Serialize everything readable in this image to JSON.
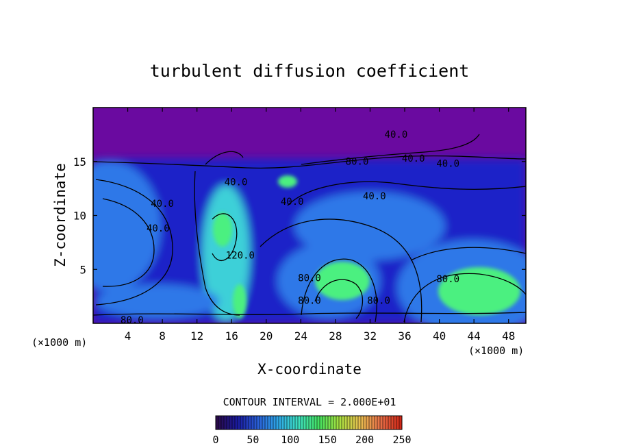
{
  "chart_data": {
    "type": "heatmap",
    "title": "turbulent diffusion coefficient",
    "xlabel": "X-coordinate",
    "ylabel": "Z-coordinate",
    "x_unit_left": "(×1000 m)",
    "x_unit_right": "(×1000 m)",
    "xlim": [
      0,
      50
    ],
    "ylim": [
      0,
      20
    ],
    "x_ticks": [
      4,
      8,
      12,
      16,
      20,
      24,
      28,
      32,
      36,
      40,
      44,
      48
    ],
    "y_ticks": [
      5,
      10,
      15
    ],
    "contour_interval_label": "CONTOUR INTERVAL = 2.000E+01",
    "contour_labels": [
      {
        "text": "40.0",
        "x": 35.0,
        "z": 17.2
      },
      {
        "text": "80.0",
        "x": 30.5,
        "z": 14.7
      },
      {
        "text": "40.0",
        "x": 37.0,
        "z": 15.0
      },
      {
        "text": "40.0",
        "x": 41.0,
        "z": 14.5
      },
      {
        "text": "40.0",
        "x": 16.5,
        "z": 12.8
      },
      {
        "text": "40.0",
        "x": 8.0,
        "z": 10.8
      },
      {
        "text": "40.0",
        "x": 7.5,
        "z": 8.5
      },
      {
        "text": "40.0",
        "x": 23.0,
        "z": 11.0
      },
      {
        "text": "40.0",
        "x": 32.5,
        "z": 11.5
      },
      {
        "text": "120.0",
        "x": 17.0,
        "z": 6.0
      },
      {
        "text": "80.0",
        "x": 25.0,
        "z": 3.9
      },
      {
        "text": "80.0",
        "x": 25.0,
        "z": 1.8
      },
      {
        "text": "80.0",
        "x": 33.0,
        "z": 1.8
      },
      {
        "text": "80.0",
        "x": 41.0,
        "z": 3.8
      },
      {
        "text": "80.0",
        "x": 4.5,
        "z": 0.0
      }
    ],
    "colorbar": {
      "min": 0,
      "max": 250,
      "ticks": [
        0,
        50,
        100,
        150,
        200,
        250
      ],
      "colors": [
        "#2a0a4a",
        "#1a1aa0",
        "#2a5fd8",
        "#2ea8e8",
        "#3ee0c0",
        "#44e060",
        "#a8e040",
        "#e8c050",
        "#e87048",
        "#d02818"
      ]
    },
    "field_colors": {
      "background": "#6a0aa0",
      "low": "#1e22c8",
      "mid": "#2f78e8",
      "high": "#3ed0d8",
      "peak": "#4cf080"
    }
  }
}
